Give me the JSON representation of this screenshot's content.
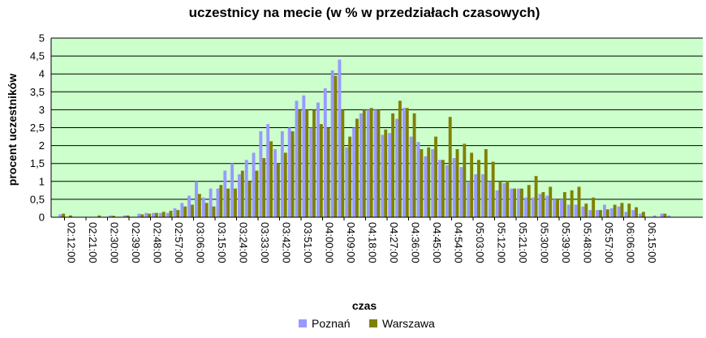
{
  "chart_data": {
    "type": "bar",
    "title": "uczestnicy na mecie (w % w przedziałach czasowych)",
    "xlabel": "czas",
    "ylabel": "procent uczestników",
    "ylim": [
      0,
      5
    ],
    "yticks": [
      "0",
      "0,5",
      "1",
      "1,5",
      "2",
      "2,5",
      "3",
      "3,5",
      "4",
      "4,5",
      "5"
    ],
    "grid": true,
    "legend_position": "bottom",
    "colors": {
      "plot_background": "#ccffcc",
      "Poznań": "#9999ff",
      "Warszawa": "#808000"
    },
    "x_tick_labels": [
      "02:12:00",
      "02:21:00",
      "02:30:00",
      "02:39:00",
      "02:48:00",
      "02:57:00",
      "03:06:00",
      "03:15:00",
      "03:24:00",
      "03:33:00",
      "03:42:00",
      "03:51:00",
      "04:00:00",
      "04:09:00",
      "04:18:00",
      "04:27:00",
      "04:36:00",
      "04:45:00",
      "04:54:00",
      "05:03:00",
      "05:12:00",
      "05:21:00",
      "05:30:00",
      "05:39:00",
      "05:48:00",
      "05:57:00",
      "06:06:00",
      "06:15:00"
    ],
    "bin_minutes": 1,
    "series": [
      {
        "name": "Poznań",
        "values": [
          0,
          0.08,
          0,
          0,
          0,
          0,
          0,
          0,
          0.05,
          0,
          0.05,
          0,
          0.1,
          0.12,
          0.12,
          0.12,
          0.12,
          0.25,
          0.4,
          0.6,
          1,
          0.55,
          0.8,
          0.8,
          1.3,
          1.5,
          1.2,
          1.6,
          1.8,
          2.4,
          2.6,
          1.9,
          2.4,
          2.5,
          3.25,
          3.4,
          2.5,
          3.2,
          3.6,
          4.1,
          4.4,
          1.95,
          2.5,
          2.9,
          3.0,
          3.0,
          2.3,
          2.35,
          2.75,
          3.05,
          2.25,
          2.1,
          1.7,
          1.9,
          1.6,
          1.45,
          1.65,
          1.4,
          1.0,
          1.2,
          1.2,
          1.0,
          0.75,
          0.95,
          0.8,
          0.8,
          0.55,
          0.55,
          0.65,
          0.6,
          0.5,
          0.5,
          0.35,
          0.35,
          0.3,
          0.2,
          0.2,
          0.35,
          0.25,
          0.3,
          0.15,
          0.2,
          0.1,
          0,
          0.05,
          0.1,
          0.05,
          0,
          0,
          0,
          0
        ]
      },
      {
        "name": "Warszawa",
        "values": [
          0,
          0.1,
          0.05,
          0,
          0,
          0,
          0.05,
          0,
          0.04,
          0,
          0.05,
          0,
          0.08,
          0.1,
          0.12,
          0.15,
          0.18,
          0.2,
          0.3,
          0.35,
          0.65,
          0.4,
          0.3,
          0.9,
          0.8,
          0.8,
          1.3,
          1.0,
          1.3,
          1.65,
          2.12,
          1.5,
          1.8,
          2.4,
          3.0,
          3.0,
          3.0,
          2.6,
          2.5,
          3.95,
          3.0,
          2.25,
          2.75,
          3.0,
          3.05,
          3.0,
          2.45,
          2.9,
          3.25,
          3.05,
          2.9,
          1.9,
          1.95,
          2.25,
          1.6,
          2.8,
          1.9,
          2.05,
          1.8,
          1.6,
          1.9,
          1.55,
          1.0,
          1.02,
          0.8,
          0.8,
          0.9,
          1.15,
          0.7,
          0.85,
          0.5,
          0.7,
          0.75,
          0.85,
          0.38,
          0.55,
          0.2,
          0.22,
          0.35,
          0.4,
          0.38,
          0.28,
          0.15,
          0,
          0,
          0.1,
          0,
          0,
          0,
          0,
          0
        ]
      }
    ]
  }
}
